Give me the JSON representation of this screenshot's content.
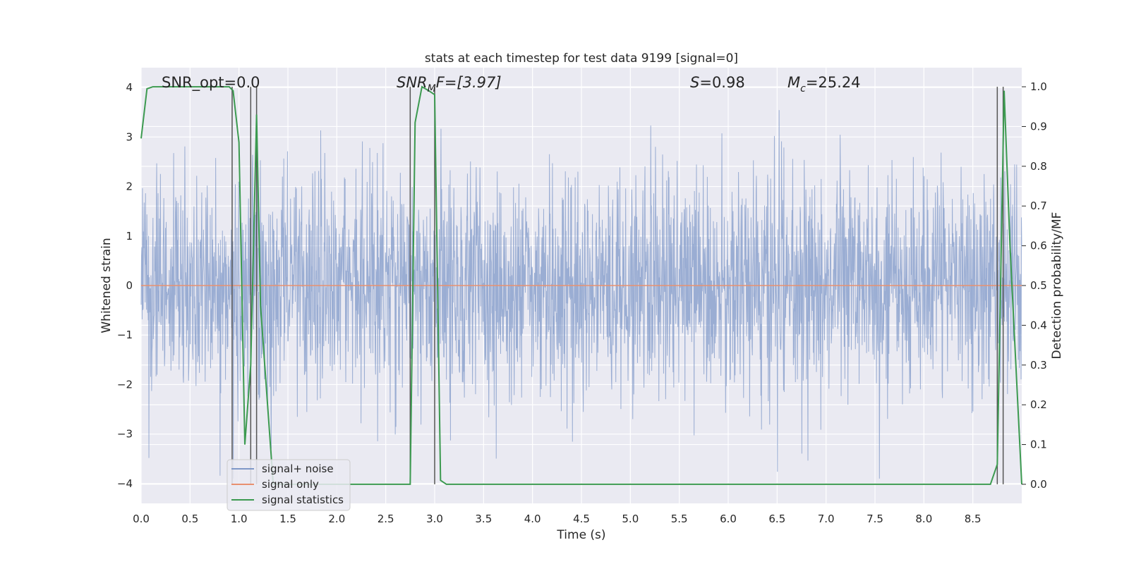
{
  "chart_data": {
    "type": "line",
    "title": "stats at each timestep for test data 9199 [signal=0]",
    "xlabel": "Time (s)",
    "ylabel": "Whitened strain",
    "ylabel_right": "Detection probability/MF",
    "xlim": [
      0.0,
      9.0
    ],
    "ylim": [
      -4.4,
      4.4
    ],
    "ylim_right": [
      -0.048,
      1.048
    ],
    "x_ticks": [
      "0.0",
      "0.5",
      "1.0",
      "1.5",
      "2.0",
      "2.5",
      "3.0",
      "3.5",
      "4.0",
      "4.5",
      "5.0",
      "5.5",
      "6.0",
      "6.5",
      "7.0",
      "7.5",
      "8.0",
      "8.5"
    ],
    "y_ticks": [
      "−4",
      "−3",
      "−2",
      "−1",
      "0",
      "1",
      "2",
      "3",
      "4"
    ],
    "y_ticks_right": [
      "0.0",
      "0.1",
      "0.2",
      "0.3",
      "0.4",
      "0.5",
      "0.6",
      "0.7",
      "0.8",
      "0.9",
      "1.0"
    ],
    "grid": true,
    "legend_position": "lower-left",
    "annotations": {
      "snr_opt": "SNR_opt=0.0",
      "snr_mf_main": "SNR",
      "snr_mf_sub": "M",
      "snr_mf_rest": "F=[3.97]",
      "s_main": "S",
      "s_rest": "=0.98",
      "mc_main": "M",
      "mc_sub": "c",
      "mc_rest": "=25.24"
    },
    "series": [
      {
        "name": "signal+ noise",
        "color": "#7f98c8",
        "noise_band": {
          "typical_range": [
            -2.3,
            2.6
          ],
          "extreme_range": [
            -3.9,
            3.9
          ]
        }
      },
      {
        "name": "signal only",
        "color": "#e8906f",
        "x": [
          0.0,
          9.0
        ],
        "y": [
          0.0,
          0.0
        ]
      },
      {
        "name": "signal statistics",
        "color": "#3c9a50",
        "x": [
          0.0,
          0.06,
          0.12,
          0.5,
          0.9,
          0.94,
          1.0,
          1.06,
          1.12,
          1.18,
          1.22,
          1.35,
          2.75,
          2.8,
          2.87,
          2.94,
          3.0,
          3.06,
          3.12,
          8.68,
          8.75,
          8.82,
          8.88,
          9.0
        ],
        "y": [
          0.87,
          0.995,
          1.0,
          1.0,
          1.0,
          0.99,
          0.86,
          0.1,
          0.3,
          0.93,
          0.45,
          0.0,
          0.0,
          0.91,
          1.0,
          0.99,
          0.98,
          0.01,
          0.0,
          0.0,
          0.05,
          0.99,
          0.6,
          0.0
        ]
      }
    ],
    "vlines": [
      0.93,
      1.12,
      1.18,
      2.75,
      3.0,
      8.75,
      8.81
    ],
    "legend": [
      "signal+ noise",
      "signal only",
      "signal statistics"
    ]
  }
}
